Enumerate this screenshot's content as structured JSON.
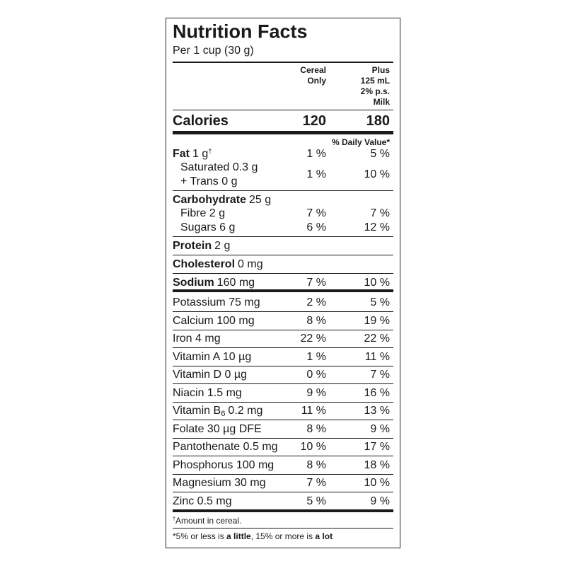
{
  "header": {
    "title": "Nutrition Facts",
    "serving": "Per 1 cup (30 g)"
  },
  "columns": {
    "cereal": [
      "Cereal",
      "Only"
    ],
    "milk": [
      "Plus",
      "125 mL",
      "2% p.s.",
      "Milk"
    ]
  },
  "calories": {
    "label": "Calories",
    "cereal": "120",
    "milk": "180"
  },
  "daily_value_heading": "% Daily Value*",
  "nutrients": [
    [
      {
        "name": "Fat",
        "amount": "1 g",
        "mark": "†",
        "cereal": "1 %",
        "milk": "5 %"
      },
      {
        "sub_lines": [
          "Saturated 0.3 g",
          "+ Trans 0 g"
        ],
        "cereal": "1 %",
        "milk": "10 %"
      }
    ],
    [
      {
        "name": "Carbohydrate",
        "amount": "25 g"
      },
      {
        "sub": "Fibre 2 g",
        "cereal": "7 %",
        "milk": "7 %"
      },
      {
        "sub": "Sugars 6 g",
        "cereal": "6 %",
        "milk": "12 %"
      }
    ],
    [
      {
        "name": "Protein",
        "amount": "2 g"
      }
    ],
    [
      {
        "name": "Cholesterol",
        "amount": "0 mg"
      }
    ],
    [
      {
        "name": "Sodium",
        "amount": "160 mg",
        "cereal": "7 %",
        "milk": "10 %"
      }
    ]
  ],
  "vitamins_minerals": [
    {
      "label": "Potassium 75 mg",
      "cereal": "2 %",
      "milk": "5 %"
    },
    {
      "label": "Calcium 100 mg",
      "cereal": "8 %",
      "milk": "19 %"
    },
    {
      "label": "Iron 4 mg",
      "cereal": "22 %",
      "milk": "22 %"
    },
    {
      "label": "Vitamin A 10 µg",
      "cereal": "1 %",
      "milk": "11 %"
    },
    {
      "label": "Vitamin D 0 µg",
      "cereal": "0 %",
      "milk": "7 %"
    },
    {
      "label": "Niacin 1.5 mg",
      "cereal": "9 %",
      "milk": "16 %"
    },
    {
      "label": "Vitamin B",
      "subscript": "6",
      "amount": "0.2 mg",
      "cereal": "11 %",
      "milk": "13 %"
    },
    {
      "label": "Folate 30 µg DFE",
      "cereal": "8 %",
      "milk": "9 %"
    },
    {
      "label": "Pantothenate 0.5 mg",
      "cereal": "10 %",
      "milk": "17 %"
    },
    {
      "label": "Phosphorus 100 mg",
      "cereal": "8 %",
      "milk": "18 %"
    },
    {
      "label": "Magnesium 30 mg",
      "cereal": "7 %",
      "milk": "10 %"
    },
    {
      "label": "Zinc 0.5 mg",
      "cereal": "5 %",
      "milk": "9 %"
    }
  ],
  "footnotes": {
    "amount": {
      "mark": "†",
      "text": "Amount in cereal."
    },
    "daily_value": [
      "*5% or less is ",
      "a little",
      ", 15% or more is ",
      "a lot"
    ]
  }
}
